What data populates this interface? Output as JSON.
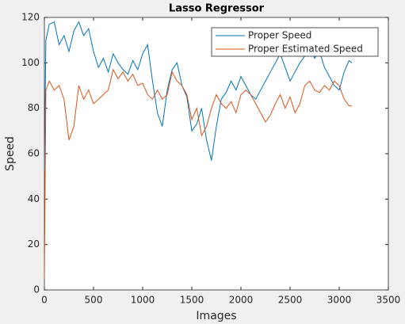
{
  "chart_data": {
    "type": "line",
    "title": "Lasso Regressor",
    "xlabel": "Images",
    "ylabel": "Speed",
    "x": [
      0,
      15,
      50,
      100,
      150,
      200,
      250,
      300,
      350,
      400,
      450,
      500,
      550,
      600,
      650,
      700,
      750,
      800,
      850,
      900,
      950,
      1000,
      1050,
      1100,
      1150,
      1200,
      1250,
      1300,
      1350,
      1400,
      1450,
      1500,
      1550,
      1600,
      1650,
      1700,
      1750,
      1800,
      1850,
      1900,
      1950,
      2000,
      2050,
      2100,
      2150,
      2200,
      2250,
      2300,
      2350,
      2400,
      2450,
      2500,
      2550,
      2600,
      2650,
      2700,
      2750,
      2800,
      2850,
      2900,
      2950,
      3000,
      3050,
      3100,
      3130
    ],
    "series": [
      {
        "name": "Proper Speed",
        "color": "#0072bd",
        "values": [
          53,
          110,
          117,
          118,
          108,
          112,
          105,
          114,
          118,
          112,
          115,
          105,
          98,
          102,
          96,
          104,
          100,
          97,
          95,
          101,
          97,
          104,
          108,
          92,
          78,
          72,
          88,
          97,
          100,
          90,
          85,
          70,
          73,
          80,
          66,
          57,
          72,
          84,
          87,
          92,
          88,
          94,
          90,
          86,
          84,
          88,
          92,
          96,
          100,
          104,
          98,
          92,
          96,
          100,
          103,
          108,
          102,
          105,
          98,
          94,
          90,
          88,
          96,
          101,
          100
        ]
      },
      {
        "name": "Proper Estimated Speed",
        "color": "#d95319",
        "values": [
          5,
          88,
          92,
          88,
          90,
          84,
          66,
          72,
          90,
          84,
          88,
          82,
          84,
          86,
          88,
          97,
          93,
          96,
          92,
          95,
          90,
          91,
          86,
          84,
          88,
          84,
          86,
          96,
          92,
          90,
          86,
          75,
          80,
          68,
          72,
          80,
          86,
          82,
          80,
          83,
          78,
          86,
          88,
          86,
          82,
          78,
          74,
          77,
          82,
          86,
          80,
          85,
          78,
          82,
          90,
          92,
          88,
          87,
          90,
          88,
          92,
          90,
          84,
          81,
          81
        ]
      }
    ],
    "xlim": [
      0,
      3500
    ],
    "xticks": [
      0,
      500,
      1000,
      1500,
      2000,
      2500,
      3000,
      3500
    ],
    "ylim": [
      0,
      120
    ],
    "yticks": [
      0,
      20,
      40,
      60,
      80,
      100,
      120
    ],
    "legend": "northeast",
    "grid": false
  }
}
